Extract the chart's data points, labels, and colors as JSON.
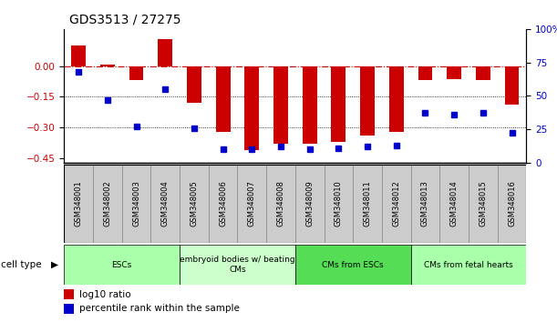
{
  "title": "GDS3513 / 27275",
  "samples": [
    "GSM348001",
    "GSM348002",
    "GSM348003",
    "GSM348004",
    "GSM348005",
    "GSM348006",
    "GSM348007",
    "GSM348008",
    "GSM348009",
    "GSM348010",
    "GSM348011",
    "GSM348012",
    "GSM348013",
    "GSM348014",
    "GSM348015",
    "GSM348016"
  ],
  "log10_ratio": [
    0.1,
    0.005,
    -0.07,
    0.13,
    -0.18,
    -0.32,
    -0.41,
    -0.38,
    -0.38,
    -0.37,
    -0.34,
    -0.32,
    -0.07,
    -0.065,
    -0.07,
    -0.19
  ],
  "percentile_rank": [
    68,
    47,
    27,
    55,
    26,
    10,
    10,
    12,
    10,
    11,
    12,
    13,
    37,
    36,
    37,
    22
  ],
  "ylim_left": [
    -0.47,
    0.18
  ],
  "ylim_right": [
    0,
    100
  ],
  "yticks_left": [
    0,
    -0.15,
    -0.3,
    -0.45
  ],
  "yticks_right": [
    0,
    25,
    50,
    75,
    100
  ],
  "bar_color": "#cc0000",
  "dot_color": "#0000cc",
  "cell_type_groups": [
    {
      "label": "ESCs",
      "start": 0,
      "end": 4,
      "color": "#aaffaa"
    },
    {
      "label": "embryoid bodies w/ beating\nCMs",
      "start": 4,
      "end": 8,
      "color": "#ccffcc"
    },
    {
      "label": "CMs from ESCs",
      "start": 8,
      "end": 12,
      "color": "#55dd55"
    },
    {
      "label": "CMs from fetal hearts",
      "start": 12,
      "end": 16,
      "color": "#aaffaa"
    }
  ],
  "legend_items": [
    {
      "label": "log10 ratio",
      "color": "#cc0000"
    },
    {
      "label": "percentile rank within the sample",
      "color": "#0000cc"
    }
  ],
  "background_color": "#ffffff",
  "plot_bg": "#ffffff",
  "title_fontsize": 10,
  "tick_fontsize": 7.5,
  "sample_box_color": "#cccccc",
  "sample_box_edge": "#888888"
}
